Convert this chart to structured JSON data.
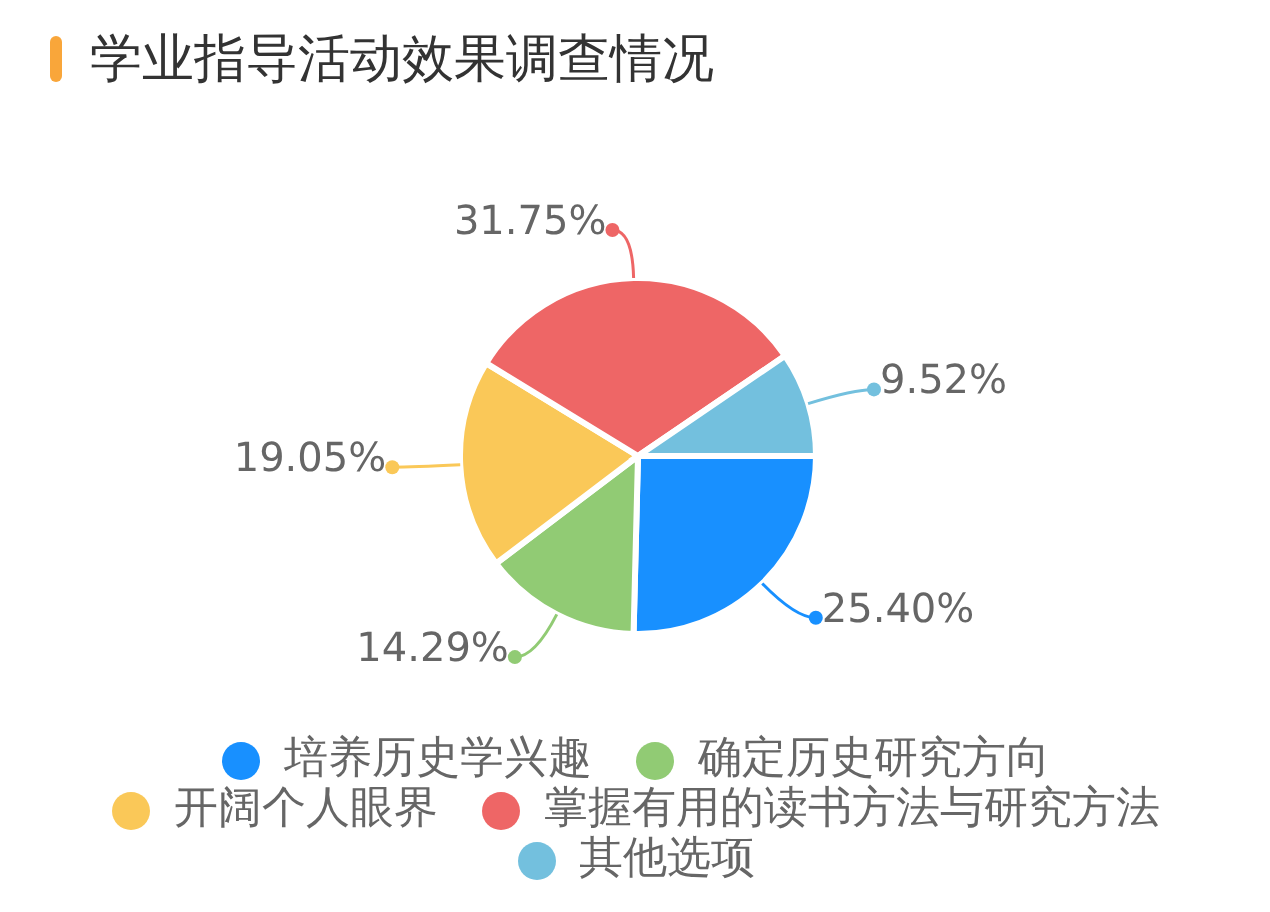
{
  "chart_data": {
    "type": "pie",
    "title": "学业指导活动效果调查情况",
    "categories": [
      "培养历史学兴趣",
      "确定历史研究方向",
      "开阔个人眼界",
      "掌握有用的读书方法与研究方法",
      "其他选项"
    ],
    "values": [
      25.4,
      14.29,
      19.05,
      31.75,
      9.52
    ],
    "colors": [
      "#1890ff",
      "#91cb74",
      "#fac858",
      "#ee6666",
      "#73c0de"
    ],
    "value_labels": [
      "25.40%",
      "14.29%",
      "19.05%",
      "31.75%",
      "9.52%"
    ],
    "legend": "bottom"
  }
}
